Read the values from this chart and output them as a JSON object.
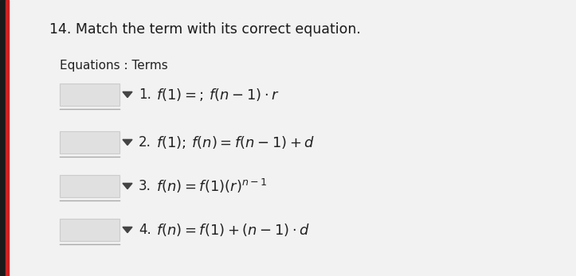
{
  "title": "14. Match the term with its correct equation.",
  "subtitle": "Equations : Terms",
  "bg_color": "#f0f0f0",
  "page_color": "#f2f2f2",
  "box_color": "#e0e0e0",
  "box_border": "#cccccc",
  "title_color": "#1a1a1a",
  "text_color": "#222222",
  "left_bar_color": "#cc2222",
  "arrow_color": "#444444",
  "underline_color": "#aaaaaa",
  "title_fontsize": 12.5,
  "subtitle_fontsize": 11,
  "eq_fontsize": 13,
  "num_fontsize": 12,
  "rows": [
    {
      "num": "1.",
      "eq": "$f(1) =;\\,f(n-1) \\cdot r$"
    },
    {
      "num": "2.",
      "eq": "$f(1);\\,f(n) = f(n-1) + d$"
    },
    {
      "num": "3.",
      "eq": "$f(n) = f(1)(r)^{n-1}$"
    },
    {
      "num": "4.",
      "eq": "$f(n) = f(1) + (n-1) \\cdot d$"
    }
  ]
}
